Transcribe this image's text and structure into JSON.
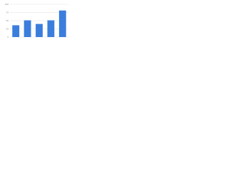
{
  "chart_data": {
    "type": "bar",
    "categories": [
      null,
      null,
      null,
      null,
      null
    ],
    "values": [
      36,
      51,
      40,
      51,
      81
    ],
    "color": "#3b7ddd",
    "ylim": [
      0,
      100
    ],
    "yticks": [
      0,
      25,
      50,
      75,
      100
    ],
    "grid": true
  }
}
